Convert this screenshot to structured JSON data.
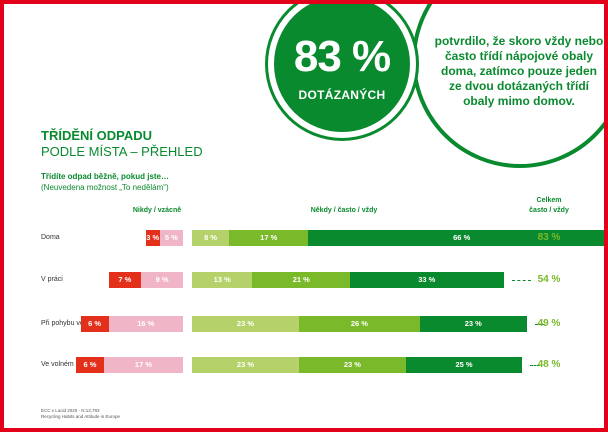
{
  "callout": {
    "percent": "83 %",
    "subtitle": "DOTÁZANÝCH"
  },
  "quote": "potvrdilo, že skoro vždy nebo často třídí nápojové obaly doma, zatímco pouze jeden ze dvou dotázaných třídí obaly mimo domov.",
  "title": {
    "line1": "TŘÍDĚNÍ ODPADU",
    "line2": "PODLE MÍSTA – PŘEHLED"
  },
  "question": "Třídíte odpad běžně, pokud jste…",
  "note": "(Neuvedena možnost „To nedělám“)",
  "colors": {
    "dark_green": "#0a8a2e",
    "mid_green": "#7ab929",
    "light_green": "#b5d16a",
    "red": "#e3301b",
    "pink": "#f0b6c8",
    "frame_red": "#e3001b"
  },
  "chart_data": {
    "type": "bar",
    "orientation": "horizontal",
    "stacked": true,
    "categories": [
      "Doma",
      "V práci",
      "Při pohybu ve městě",
      "Ve volném čase venku"
    ],
    "group_headers": {
      "never_rarely": "Nikdy / vzácně",
      "sometimes_often_always": "Někdy / často / vždy",
      "total_line1": "Celkem",
      "total_line2": "často / vždy"
    },
    "series": [
      {
        "name": "Nikdy",
        "group": "never_rarely",
        "values": [
          3,
          7,
          6,
          6
        ],
        "labels": [
          "3 %",
          "7 %",
          "6 %",
          "6 %"
        ]
      },
      {
        "name": "Vzácně",
        "group": "never_rarely",
        "values": [
          5,
          9,
          16,
          17
        ],
        "labels": [
          "5 %",
          "9 %",
          "16 %",
          "17 %"
        ]
      },
      {
        "name": "Někdy",
        "group": "sometimes_often_always",
        "values": [
          8,
          13,
          23,
          23
        ],
        "labels": [
          "8 %",
          "13 %",
          "23 %",
          "23 %"
        ]
      },
      {
        "name": "Často",
        "group": "sometimes_often_always",
        "values": [
          17,
          21,
          26,
          23
        ],
        "labels": [
          "17 %",
          "21 %",
          "26 %",
          "23 %"
        ]
      },
      {
        "name": "Vždy",
        "group": "sometimes_often_always",
        "values": [
          66,
          33,
          23,
          25
        ],
        "labels": [
          "66 %",
          "33 %",
          "23 %",
          "25 %"
        ]
      }
    ],
    "totals": {
      "values": [
        83,
        54,
        49,
        48
      ],
      "labels": [
        "83 %",
        "54 %",
        "49 %",
        "48 %"
      ]
    }
  },
  "footer": {
    "line1": "ECC x Lucid 2020 · N:13,793",
    "line2": "Recycling Habits and Attitude in Europe"
  }
}
